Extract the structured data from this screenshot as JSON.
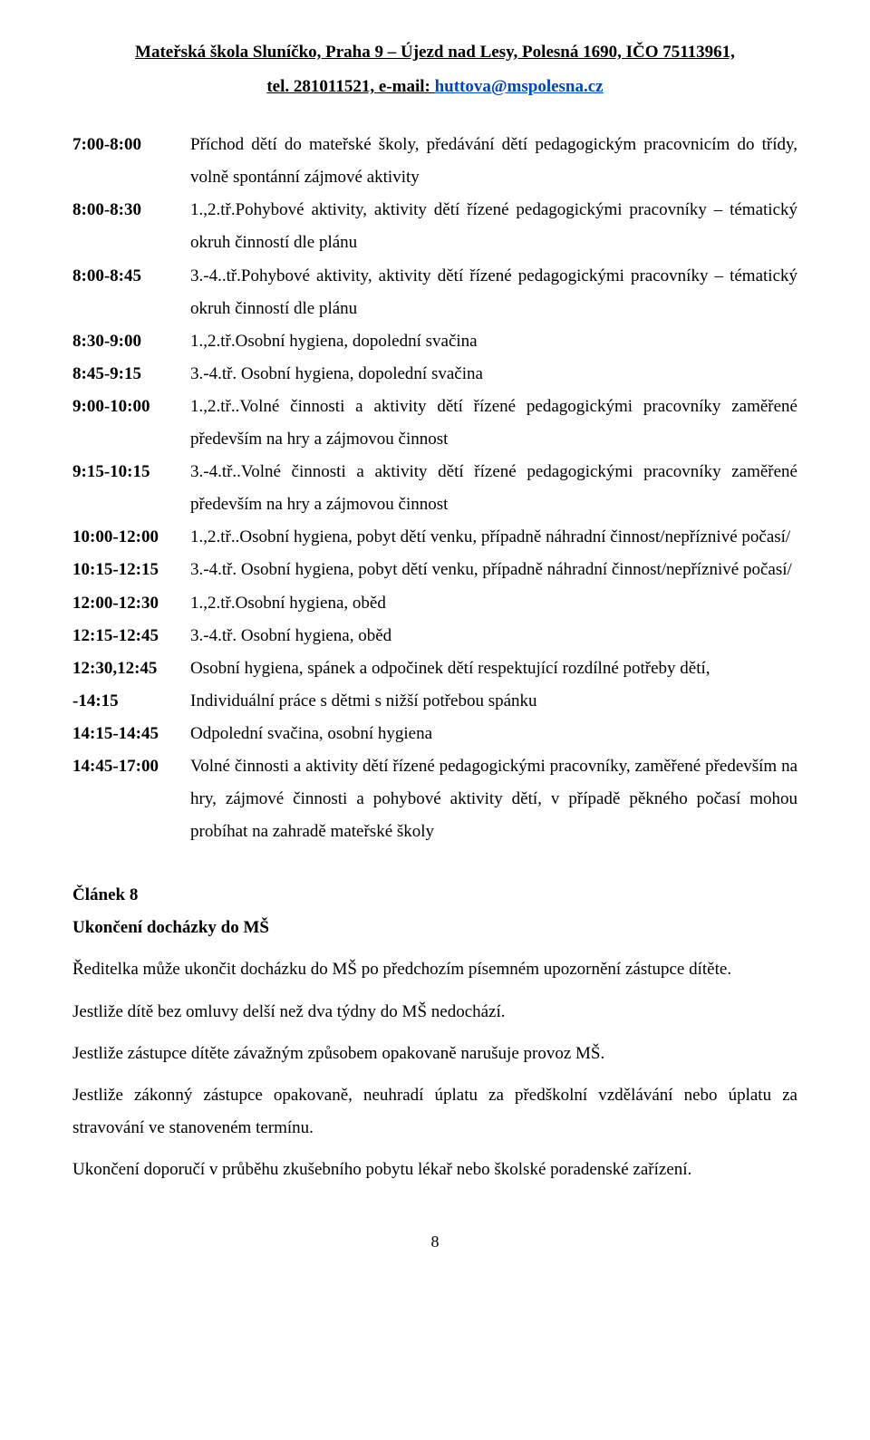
{
  "header": {
    "line1": "Mateřská škola Sluníčko, Praha 9 – Újezd nad Lesy, Polesná 1690, IČO 75113961,",
    "line2_prefix": "tel. 281011521, e-mail: ",
    "email": "huttova@mspolesna.cz"
  },
  "schedule": [
    {
      "time": "7:00-8:00",
      "desc": "Příchod  dětí  do  mateřské  školy,  předávání  dětí  pedagogickým pracovnicím do třídy, volně spontánní zájmové aktivity"
    },
    {
      "time": "8:00-8:30",
      "desc": "1.,2.tř.Pohybové aktivity, aktivity dětí řízené pedagogickými pracovníky – tématický  okruh činností dle plánu"
    },
    {
      "time": "8:00-8:45",
      "desc": "3.-4..tř.Pohybové aktivity, aktivity dětí řízené pedagogickými pracovníky – tématický  okruh činností dle plánu"
    },
    {
      "time": "8:30-9:00",
      "desc": "1.,2.tř.Osobní hygiena, dopolední svačina"
    },
    {
      "time": "8:45-9:15",
      "desc": "3.-4.tř. Osobní hygiena, dopolední svačina"
    },
    {
      "time": "9:00-10:00",
      "desc": "1.,2.tř..Volné činnosti a aktivity dětí řízené pedagogickými pracovníky zaměřené především na hry a zájmovou činnost"
    },
    {
      "time": "9:15-10:15",
      "desc": "3.-4.tř..Volné činnosti a aktivity dětí řízené pedagogickými pracovníky zaměřené především na hry a zájmovou činnost"
    },
    {
      "time": "10:00-12:00",
      "desc": "1.,2.tř..Osobní   hygiena,   pobyt   dětí   venku,   případně   náhradní činnost/nepříznivé počasí/"
    },
    {
      "time": "10:15-12:15",
      "desc": "3.-4.tř.   Osobní   hygiena,   pobyt   dětí   venku,   případně   náhradní činnost/nepříznivé počasí/"
    },
    {
      "time": "12:00-12:30",
      "desc": "1.,2.tř.Osobní hygiena, oběd"
    },
    {
      "time": "12:15-12:45",
      "desc": "3.-4.tř. Osobní hygiena, oběd"
    },
    {
      "time": "12:30,12:45",
      "desc": "Osobní hygiena, spánek a odpočinek dětí respektující rozdílné potřeby dětí,"
    },
    {
      "time": "-14:15",
      "desc": "Individuální práce s dětmi s nižší potřebou spánku"
    },
    {
      "time": "14:15-14:45",
      "desc": "Odpolední svačina, osobní hygiena"
    },
    {
      "time": "14:45-17:00",
      "desc": "Volné činnosti a aktivity dětí řízené pedagogickými pracovníky, zaměřené především na hry, zájmové činnosti a pohybové aktivity dětí, v případě pěkného počasí mohou probíhat na zahradě mateřské školy"
    }
  ],
  "article": {
    "heading": "Článek 8",
    "sub": "Ukončení docházky do MŠ",
    "p1": "Ředitelka může ukončit docházku do MŠ po předchozím písemném upozornění zástupce dítěte.",
    "p2": "Jestliže dítě bez omluvy delší než dva týdny do MŠ nedochází.",
    "p3": "Jestliže zástupce dítěte závažným způsobem opakovaně narušuje provoz MŠ.",
    "p4": "Jestliže zákonný zástupce opakovaně, neuhradí úplatu za předškolní vzdělávání nebo úplatu za stravování ve stanoveném termínu.",
    "p5": "Ukončení doporučí v průběhu zkušebního pobytu lékař nebo školské poradenské zařízení."
  },
  "page_number": "8"
}
